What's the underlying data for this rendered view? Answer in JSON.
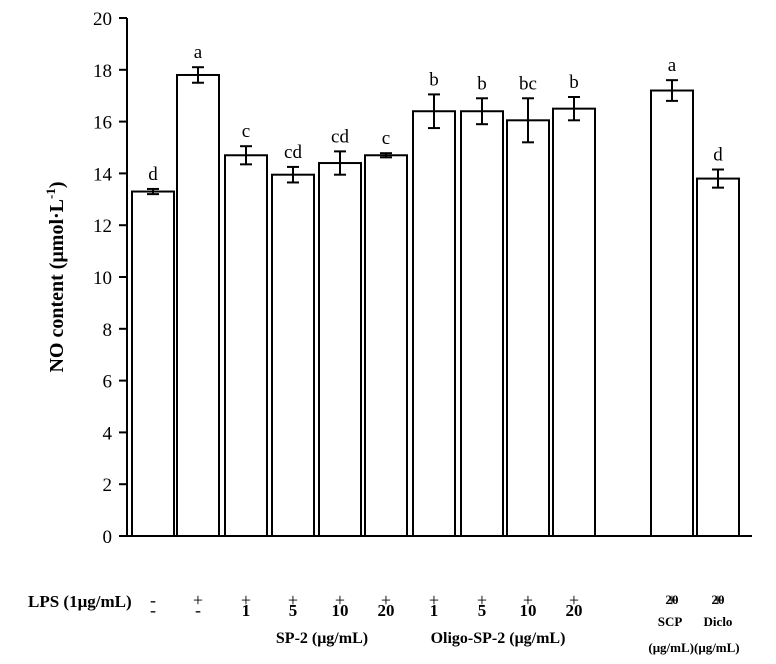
{
  "chart_data": {
    "type": "bar",
    "ylabel": "NO content (μmol·L",
    "ylabel_sup": "-1",
    "ylabel_close": ")",
    "ylim": [
      0,
      20
    ],
    "yticks": [
      0,
      2,
      4,
      6,
      8,
      10,
      12,
      14,
      16,
      18,
      20
    ],
    "grid": false,
    "bars": [
      {
        "value": 13.3,
        "err": 0.1,
        "sig": "d"
      },
      {
        "value": 17.8,
        "err": 0.3,
        "sig": "a"
      },
      {
        "value": 14.7,
        "err": 0.35,
        "sig": "c"
      },
      {
        "value": 13.95,
        "err": 0.3,
        "sig": "cd"
      },
      {
        "value": 14.4,
        "err": 0.45,
        "sig": "cd"
      },
      {
        "value": 14.7,
        "err": 0.08,
        "sig": "c"
      },
      {
        "value": 16.4,
        "err": 0.65,
        "sig": "b"
      },
      {
        "value": 16.4,
        "err": 0.5,
        "sig": "b"
      },
      {
        "value": 16.05,
        "err": 0.85,
        "sig": "bc"
      },
      {
        "value": 16.5,
        "err": 0.45,
        "sig": "b"
      },
      {
        "value": 17.2,
        "err": 0.4,
        "sig": "a"
      },
      {
        "value": 13.8,
        "err": 0.35,
        "sig": "d"
      }
    ],
    "lps_row_label": "LPS (1μg/mL)",
    "lps_row": [
      "-",
      "+",
      "+",
      "+",
      "+",
      "+",
      "+",
      "+",
      "+",
      "+",
      "+",
      "+"
    ],
    "dose_row": [
      "-",
      "-",
      "1",
      "5",
      "10",
      "20",
      "1",
      "5",
      "10",
      "20",
      "20",
      "20"
    ],
    "group_labels": {
      "sp2": "SP-2 (μg/mL)",
      "oligo": "Oligo-SP-2 (μg/mL)",
      "scp": "SCP",
      "diclo": "Diclo",
      "unit": "(μg/mL)(μg/mL)"
    }
  }
}
